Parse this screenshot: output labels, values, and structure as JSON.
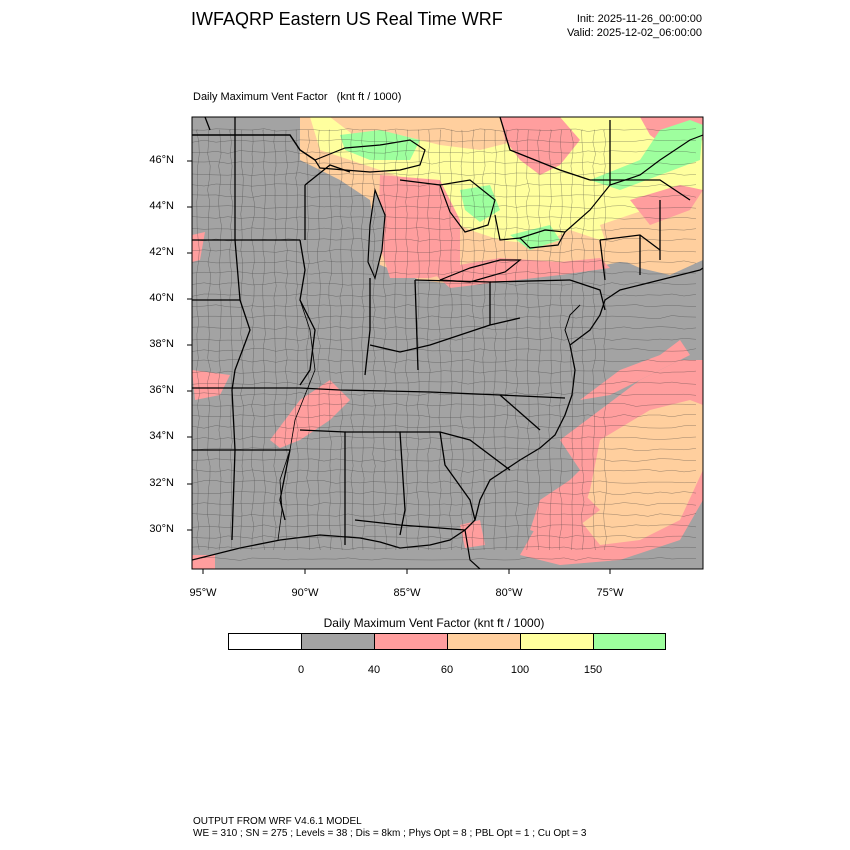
{
  "header": {
    "title": "IWFAQRP Eastern US Real Time WRF",
    "init": "Init: 2025-11-26_00:00:00",
    "valid": "Valid: 2025-12-02_06:00:00"
  },
  "field_title": "Daily Maximum Vent Factor   (knt ft / 1000)",
  "map": {
    "lat_labels": [
      "46°N",
      "44°N",
      "42°N",
      "40°N",
      "38°N",
      "36°N",
      "34°N",
      "32°N",
      "30°N"
    ],
    "lon_labels": [
      "95°W",
      "90°W",
      "85°W",
      "80°W",
      "75°W"
    ],
    "colors": {
      "gray": "#a3a3a3",
      "pink": "#ff9e9e",
      "orange": "#ffcf9e",
      "yellow": "#ffff9e",
      "green": "#9eff9e",
      "white": "#ffffff"
    }
  },
  "colorbar": {
    "title": "Daily Maximum Vent Factor  (knt ft / 1000)",
    "bins": [
      {
        "color": "#ffffff"
      },
      {
        "color": "#a3a3a3"
      },
      {
        "color": "#ff9e9e"
      },
      {
        "color": "#ffcf9e"
      },
      {
        "color": "#ffff9e"
      },
      {
        "color": "#9eff9e"
      }
    ],
    "labels": [
      "0",
      "40",
      "60",
      "100",
      "150"
    ]
  },
  "footer": {
    "line1": "OUTPUT FROM WRF V4.6.1 MODEL",
    "line2": "WE = 310 ; SN = 275 ; Levels = 38 ; Dis = 8km ; Phys Opt = 8 ; PBL Opt = 1 ; Cu Opt = 3"
  }
}
